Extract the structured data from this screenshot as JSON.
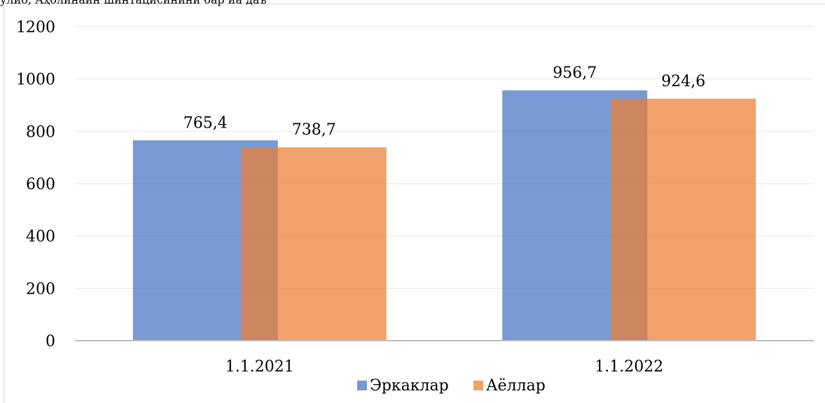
{
  "cut_title": "улиб, Аҳолинайн шинтацисинини бар иа даъ",
  "chart_data": {
    "type": "bar",
    "categories": [
      "1.1.2021",
      "1.1.2022"
    ],
    "series": [
      {
        "name": "Эркаклар",
        "values": [
          765.4,
          956.7
        ],
        "labels": [
          "765,4",
          "956,7"
        ],
        "color": "#4472c4"
      },
      {
        "name": "Аёллар",
        "values": [
          738.7,
          924.6
        ],
        "labels": [
          "738,7",
          "924,6"
        ],
        "color": "#ed7d31"
      }
    ],
    "yticks": [
      "0",
      "200",
      "400",
      "600",
      "800",
      "1000",
      "1200"
    ],
    "ylim": [
      0,
      1200
    ],
    "grid": true,
    "legend": "bottom",
    "bar_opacity": 0.72
  }
}
